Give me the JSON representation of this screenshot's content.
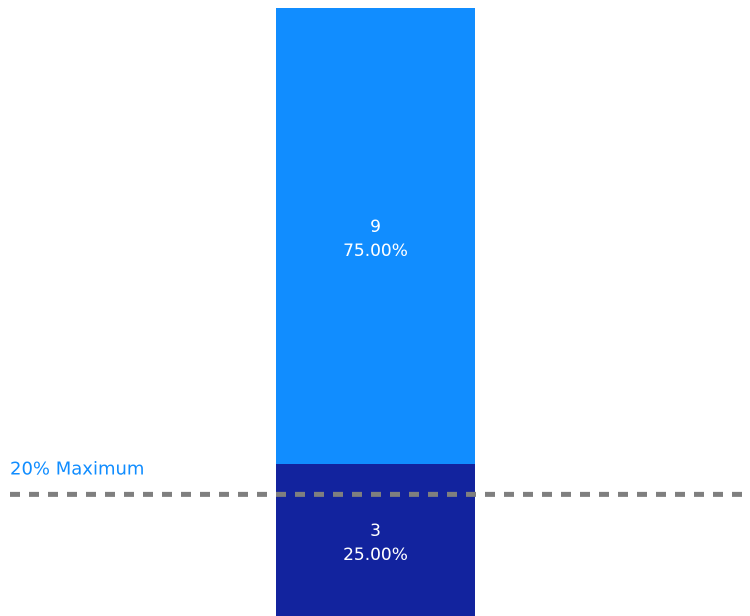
{
  "chart_data": {
    "type": "bar",
    "stacked": true,
    "percent_stacked": true,
    "categories": [
      ""
    ],
    "series": [
      {
        "values": [
          3
        ],
        "percent": [
          25.0
        ],
        "color": "#12239E",
        "value_label": "3",
        "percent_label": "25.00%"
      },
      {
        "values": [
          9
        ],
        "percent": [
          75.0
        ],
        "color": "#118DFF",
        "value_label": "9",
        "percent_label": "75.00%"
      }
    ],
    "ylim": [
      0,
      100
    ],
    "reference_line": {
      "label": "20% Maximum",
      "value": 20,
      "style": "dashed",
      "line_color": "#7F7F7F",
      "label_color": "#118DFF"
    },
    "grid": false,
    "legend": "none",
    "axes_visible": false
  }
}
